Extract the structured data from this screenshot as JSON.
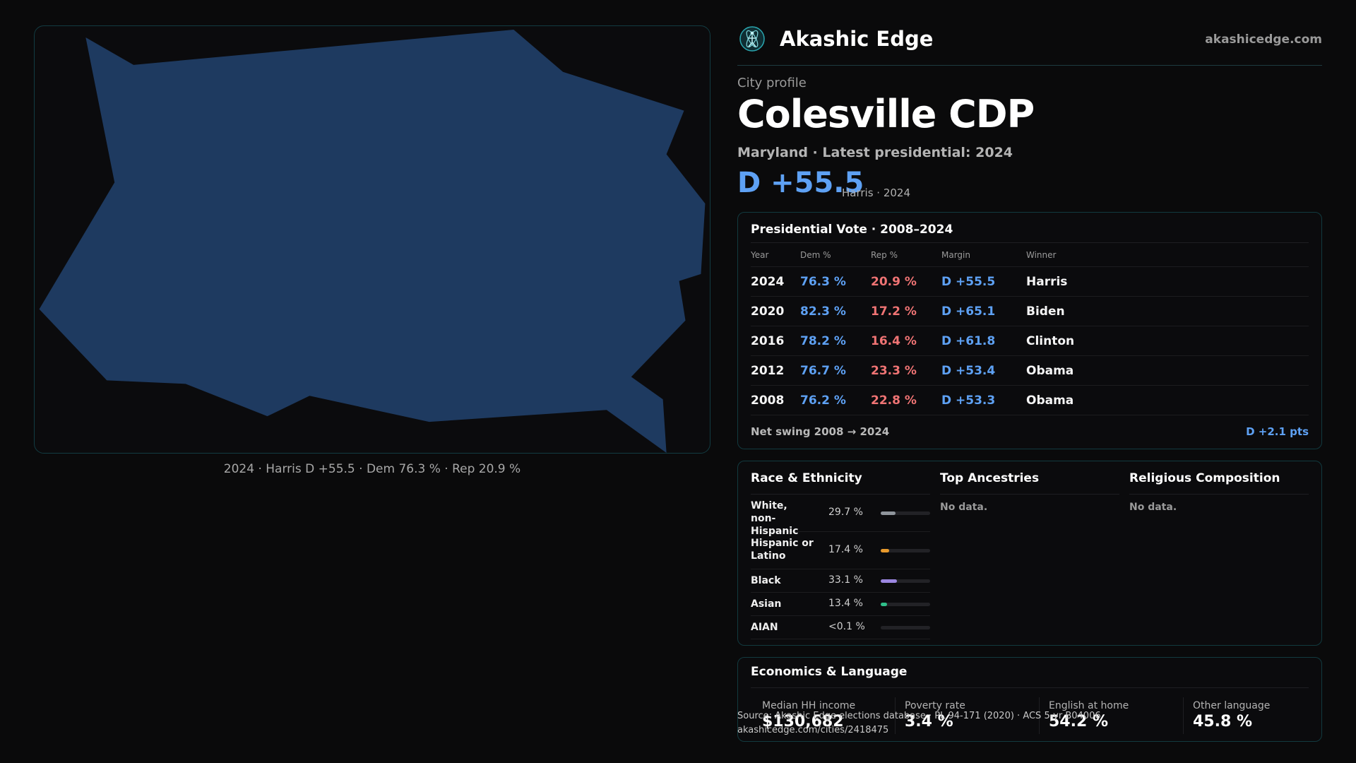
{
  "map": {
    "caption": "2024 · Harris D +55.5 · Dem 76.3 % · Rep 20.9 %",
    "fill_color": "#1e3a60"
  },
  "brand": {
    "name": "Akashic Edge",
    "url": "akashicedge.com",
    "logo_icon": "atom-figure-icon"
  },
  "profile": {
    "kicker": "City profile",
    "title": "Colesville CDP",
    "subtitle": "Maryland · Latest presidential: 2024",
    "margin": "D +55.5",
    "margin_note": "Harris · 2024"
  },
  "vote": {
    "title": "Presidential Vote · 2008–2024",
    "headers": [
      "Year",
      "Dem %",
      "Rep %",
      "Margin",
      "Winner"
    ],
    "rows": [
      {
        "year": "2024",
        "dem": "76.3 %",
        "rep": "20.9 %",
        "margin": "D +55.5",
        "winner": "Harris"
      },
      {
        "year": "2020",
        "dem": "82.3 %",
        "rep": "17.2 %",
        "margin": "D +65.1",
        "winner": "Biden"
      },
      {
        "year": "2016",
        "dem": "78.2 %",
        "rep": "16.4 %",
        "margin": "D +61.8",
        "winner": "Clinton"
      },
      {
        "year": "2012",
        "dem": "76.7 %",
        "rep": "23.3 %",
        "margin": "D +53.4",
        "winner": "Obama"
      },
      {
        "year": "2008",
        "dem": "76.2 %",
        "rep": "22.8 %",
        "margin": "D +53.3",
        "winner": "Obama"
      }
    ],
    "net_swing_label": "Net swing 2008 → 2024",
    "net_swing_value": "D +2.1 pts"
  },
  "race": {
    "title": "Race & Ethnicity",
    "rows": [
      {
        "label": "White, non-Hispanic",
        "pct": "29.7 %",
        "value": 29.7,
        "color": "#8f959c"
      },
      {
        "label": "Hispanic or Latino",
        "pct": "17.4 %",
        "value": 17.4,
        "color": "#e89a2c"
      },
      {
        "label": "Black",
        "pct": "33.1 %",
        "value": 33.1,
        "color": "#9b86e0"
      },
      {
        "label": "Asian",
        "pct": "13.4 %",
        "value": 13.4,
        "color": "#2fbf8a"
      },
      {
        "label": "AIAN",
        "pct": "<0.1 %",
        "value": 0.05,
        "color": "#8f959c"
      }
    ]
  },
  "ancestries": {
    "title": "Top Ancestries",
    "empty": "No data."
  },
  "religion": {
    "title": "Religious Composition",
    "empty": "No data."
  },
  "economics": {
    "title": "Economics & Language",
    "stats": [
      {
        "label": "Median HH income",
        "value": "$130,682"
      },
      {
        "label": "Poverty rate",
        "value": "3.4 %"
      },
      {
        "label": "English at home",
        "value": "54.2 %"
      },
      {
        "label": "Other language",
        "value": "45.8 %"
      }
    ]
  },
  "footer": {
    "source": "Source: Akashic Edge elections database · PL 94-171 (2020) · ACS 5-yr B04006",
    "url": "akashicedge.com/cities/2418475"
  }
}
